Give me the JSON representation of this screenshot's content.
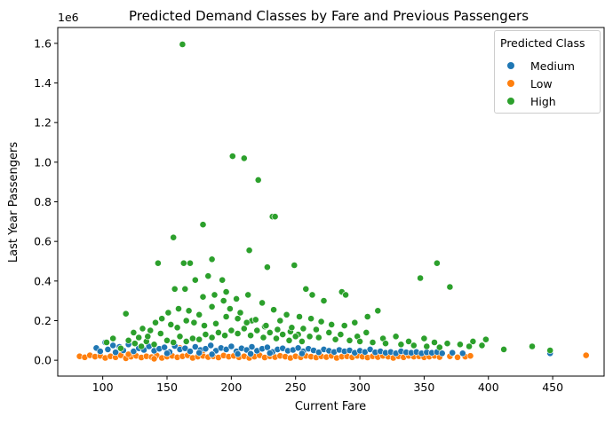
{
  "chart_data": {
    "type": "scatter",
    "title": "Predicted Demand Classes by Fare and Previous Passengers",
    "xlabel": "Current Fare",
    "ylabel": "Last Year Passengers",
    "y_offset_text": "1e6",
    "xlim": [
      65,
      490
    ],
    "ylim": [
      -80000,
      1680000
    ],
    "xticks": [
      100,
      150,
      200,
      250,
      300,
      350,
      400,
      450
    ],
    "yticks": [
      0,
      200000,
      400000,
      600000,
      800000,
      1000000,
      1200000,
      1400000,
      1600000
    ],
    "ytick_labels": [
      "0.0",
      "0.2",
      "0.4",
      "0.6",
      "0.8",
      "1.0",
      "1.2",
      "1.4",
      "1.6"
    ],
    "grid": false,
    "legend": {
      "title": "Predicted Class",
      "location": "top-right"
    },
    "series": [
      {
        "name": "Medium",
        "color": "#1f77b4",
        "points": [
          [
            95,
            62000
          ],
          [
            98,
            45000
          ],
          [
            102,
            90000
          ],
          [
            104,
            55000
          ],
          [
            108,
            75000
          ],
          [
            110,
            40000
          ],
          [
            113,
            68000
          ],
          [
            116,
            50000
          ],
          [
            120,
            80000
          ],
          [
            124,
            45000
          ],
          [
            128,
            60000
          ],
          [
            132,
            52000
          ],
          [
            136,
            70000
          ],
          [
            140,
            48000
          ],
          [
            144,
            58000
          ],
          [
            148,
            65000
          ],
          [
            152,
            42000
          ],
          [
            156,
            72000
          ],
          [
            160,
            55000
          ],
          [
            164,
            60000
          ],
          [
            168,
            45000
          ],
          [
            172,
            68000
          ],
          [
            176,
            52000
          ],
          [
            180,
            58000
          ],
          [
            184,
            75000
          ],
          [
            188,
            48000
          ],
          [
            192,
            62000
          ],
          [
            196,
            55000
          ],
          [
            200,
            70000
          ],
          [
            204,
            45000
          ],
          [
            208,
            60000
          ],
          [
            212,
            52000
          ],
          [
            216,
            68000
          ],
          [
            220,
            48000
          ],
          [
            224,
            58000
          ],
          [
            228,
            65000
          ],
          [
            232,
            42000
          ],
          [
            236,
            55000
          ],
          [
            240,
            60000
          ],
          [
            244,
            48000
          ],
          [
            248,
            52000
          ],
          [
            252,
            62000
          ],
          [
            256,
            45000
          ],
          [
            260,
            58000
          ],
          [
            264,
            50000
          ],
          [
            268,
            40000
          ],
          [
            272,
            55000
          ],
          [
            276,
            48000
          ],
          [
            280,
            42000
          ],
          [
            284,
            52000
          ],
          [
            288,
            45000
          ],
          [
            292,
            50000
          ],
          [
            296,
            38000
          ],
          [
            300,
            48000
          ],
          [
            304,
            42000
          ],
          [
            308,
            55000
          ],
          [
            312,
            40000
          ],
          [
            316,
            45000
          ],
          [
            320,
            38000
          ],
          [
            324,
            42000
          ],
          [
            328,
            35000
          ],
          [
            332,
            45000
          ],
          [
            336,
            40000
          ],
          [
            340,
            38000
          ],
          [
            344,
            42000
          ],
          [
            348,
            35000
          ],
          [
            352,
            40000
          ],
          [
            356,
            38000
          ],
          [
            360,
            42000
          ],
          [
            364,
            35000
          ],
          [
            372,
            38000
          ],
          [
            380,
            35000
          ],
          [
            448,
            35000
          ],
          [
            150,
            35000
          ],
          [
            175,
            38000
          ],
          [
            205,
            32000
          ],
          [
            230,
            36000
          ],
          [
            255,
            34000
          ],
          [
            185,
            30000
          ],
          [
            215,
            33000
          ]
        ]
      },
      {
        "name": "Low",
        "color": "#ff7f0e",
        "points": [
          [
            82,
            20000
          ],
          [
            86,
            15000
          ],
          [
            90,
            25000
          ],
          [
            94,
            18000
          ],
          [
            98,
            22000
          ],
          [
            102,
            12000
          ],
          [
            106,
            20000
          ],
          [
            110,
            15000
          ],
          [
            114,
            25000
          ],
          [
            118,
            10000
          ],
          [
            122,
            18000
          ],
          [
            126,
            22000
          ],
          [
            130,
            14000
          ],
          [
            134,
            20000
          ],
          [
            138,
            16000
          ],
          [
            142,
            24000
          ],
          [
            146,
            12000
          ],
          [
            150,
            18000
          ],
          [
            154,
            22000
          ],
          [
            158,
            15000
          ],
          [
            162,
            20000
          ],
          [
            166,
            25000
          ],
          [
            170,
            12000
          ],
          [
            174,
            18000
          ],
          [
            178,
            22000
          ],
          [
            182,
            16000
          ],
          [
            186,
            20000
          ],
          [
            190,
            14000
          ],
          [
            194,
            24000
          ],
          [
            198,
            18000
          ],
          [
            202,
            22000
          ],
          [
            206,
            15000
          ],
          [
            210,
            20000
          ],
          [
            214,
            12000
          ],
          [
            218,
            18000
          ],
          [
            222,
            25000
          ],
          [
            226,
            14000
          ],
          [
            230,
            20000
          ],
          [
            234,
            16000
          ],
          [
            238,
            22000
          ],
          [
            242,
            18000
          ],
          [
            246,
            12000
          ],
          [
            250,
            20000
          ],
          [
            254,
            15000
          ],
          [
            258,
            22000
          ],
          [
            262,
            18000
          ],
          [
            266,
            14000
          ],
          [
            270,
            20000
          ],
          [
            274,
            16000
          ],
          [
            278,
            22000
          ],
          [
            282,
            12000
          ],
          [
            286,
            18000
          ],
          [
            290,
            20000
          ],
          [
            294,
            15000
          ],
          [
            298,
            22000
          ],
          [
            302,
            18000
          ],
          [
            306,
            14000
          ],
          [
            310,
            20000
          ],
          [
            314,
            16000
          ],
          [
            318,
            22000
          ],
          [
            322,
            18000
          ],
          [
            326,
            12000
          ],
          [
            330,
            20000
          ],
          [
            334,
            15000
          ],
          [
            338,
            22000
          ],
          [
            342,
            18000
          ],
          [
            346,
            20000
          ],
          [
            350,
            15000
          ],
          [
            354,
            18000
          ],
          [
            358,
            22000
          ],
          [
            362,
            16000
          ],
          [
            370,
            20000
          ],
          [
            376,
            15000
          ],
          [
            382,
            18000
          ],
          [
            386,
            22000
          ],
          [
            476,
            25000
          ],
          [
            160,
            62000
          ],
          [
            178,
            50000
          ],
          [
            120,
            30000
          ],
          [
            140,
            8000
          ]
        ]
      },
      {
        "name": "High",
        "color": "#2ca02c",
        "points": [
          [
            162,
            1595000
          ],
          [
            201,
            1030000
          ],
          [
            210,
            1020000
          ],
          [
            221,
            910000
          ],
          [
            232,
            725000
          ],
          [
            234,
            725000
          ],
          [
            178,
            685000
          ],
          [
            155,
            620000
          ],
          [
            185,
            510000
          ],
          [
            214,
            555000
          ],
          [
            143,
            490000
          ],
          [
            163,
            490000
          ],
          [
            168,
            490000
          ],
          [
            228,
            470000
          ],
          [
            249,
            480000
          ],
          [
            360,
            490000
          ],
          [
            347,
            415000
          ],
          [
            370,
            370000
          ],
          [
            172,
            405000
          ],
          [
            182,
            425000
          ],
          [
            193,
            405000
          ],
          [
            156,
            360000
          ],
          [
            164,
            360000
          ],
          [
            178,
            320000
          ],
          [
            187,
            330000
          ],
          [
            196,
            345000
          ],
          [
            204,
            310000
          ],
          [
            213,
            330000
          ],
          [
            224,
            290000
          ],
          [
            233,
            255000
          ],
          [
            243,
            230000
          ],
          [
            253,
            220000
          ],
          [
            262,
            210000
          ],
          [
            270,
            195000
          ],
          [
            278,
            180000
          ],
          [
            288,
            175000
          ],
          [
            296,
            190000
          ],
          [
            306,
            220000
          ],
          [
            314,
            250000
          ],
          [
            263,
            330000
          ],
          [
            258,
            360000
          ],
          [
            272,
            300000
          ],
          [
            286,
            345000
          ],
          [
            289,
            330000
          ],
          [
            118,
            235000
          ],
          [
            124,
            140000
          ],
          [
            131,
            160000
          ],
          [
            137,
            150000
          ],
          [
            145,
            135000
          ],
          [
            151,
            240000
          ],
          [
            159,
            260000
          ],
          [
            167,
            250000
          ],
          [
            175,
            230000
          ],
          [
            185,
            270000
          ],
          [
            194,
            300000
          ],
          [
            199,
            260000
          ],
          [
            207,
            240000
          ],
          [
            216,
            200000
          ],
          [
            226,
            170000
          ],
          [
            236,
            155000
          ],
          [
            246,
            145000
          ],
          [
            256,
            160000
          ],
          [
            266,
            155000
          ],
          [
            276,
            140000
          ],
          [
            285,
            130000
          ],
          [
            298,
            120000
          ],
          [
            305,
            140000
          ],
          [
            318,
            110000
          ],
          [
            328,
            120000
          ],
          [
            338,
            95000
          ],
          [
            350,
            110000
          ],
          [
            358,
            90000
          ],
          [
            368,
            85000
          ],
          [
            378,
            80000
          ],
          [
            388,
            95000
          ],
          [
            398,
            105000
          ],
          [
            412,
            55000
          ],
          [
            434,
            70000
          ],
          [
            448,
            50000
          ],
          [
            103,
            90000
          ],
          [
            108,
            110000
          ],
          [
            114,
            60000
          ],
          [
            120,
            100000
          ],
          [
            128,
            115000
          ],
          [
            134,
            95000
          ],
          [
            141,
            190000
          ],
          [
            146,
            210000
          ],
          [
            153,
            180000
          ],
          [
            158,
            165000
          ],
          [
            165,
            200000
          ],
          [
            171,
            190000
          ],
          [
            179,
            175000
          ],
          [
            188,
            185000
          ],
          [
            196,
            220000
          ],
          [
            205,
            210000
          ],
          [
            212,
            190000
          ],
          [
            219,
            205000
          ],
          [
            227,
            175000
          ],
          [
            238,
            200000
          ],
          [
            247,
            165000
          ],
          [
            252,
            130000
          ],
          [
            261,
            120000
          ],
          [
            268,
            115000
          ],
          [
            281,
            105000
          ],
          [
            292,
            100000
          ],
          [
            300,
            95000
          ],
          [
            310,
            90000
          ],
          [
            320,
            85000
          ],
          [
            332,
            80000
          ],
          [
            342,
            75000
          ],
          [
            352,
            70000
          ],
          [
            362,
            65000
          ],
          [
            385,
            70000
          ],
          [
            395,
            75000
          ],
          [
            150,
            100000
          ],
          [
            160,
            120000
          ],
          [
            170,
            110000
          ],
          [
            180,
            130000
          ],
          [
            190,
            140000
          ],
          [
            200,
            150000
          ],
          [
            210,
            160000
          ],
          [
            220,
            150000
          ],
          [
            230,
            140000
          ],
          [
            240,
            130000
          ],
          [
            250,
            120000
          ],
          [
            140,
            80000
          ],
          [
            130,
            70000
          ],
          [
            125,
            85000
          ],
          [
            135,
            120000
          ],
          [
            155,
            90000
          ],
          [
            165,
            95000
          ],
          [
            175,
            105000
          ],
          [
            185,
            115000
          ],
          [
            195,
            125000
          ],
          [
            205,
            135000
          ],
          [
            215,
            125000
          ],
          [
            225,
            115000
          ],
          [
            235,
            110000
          ],
          [
            245,
            100000
          ],
          [
            255,
            95000
          ]
        ]
      }
    ]
  }
}
